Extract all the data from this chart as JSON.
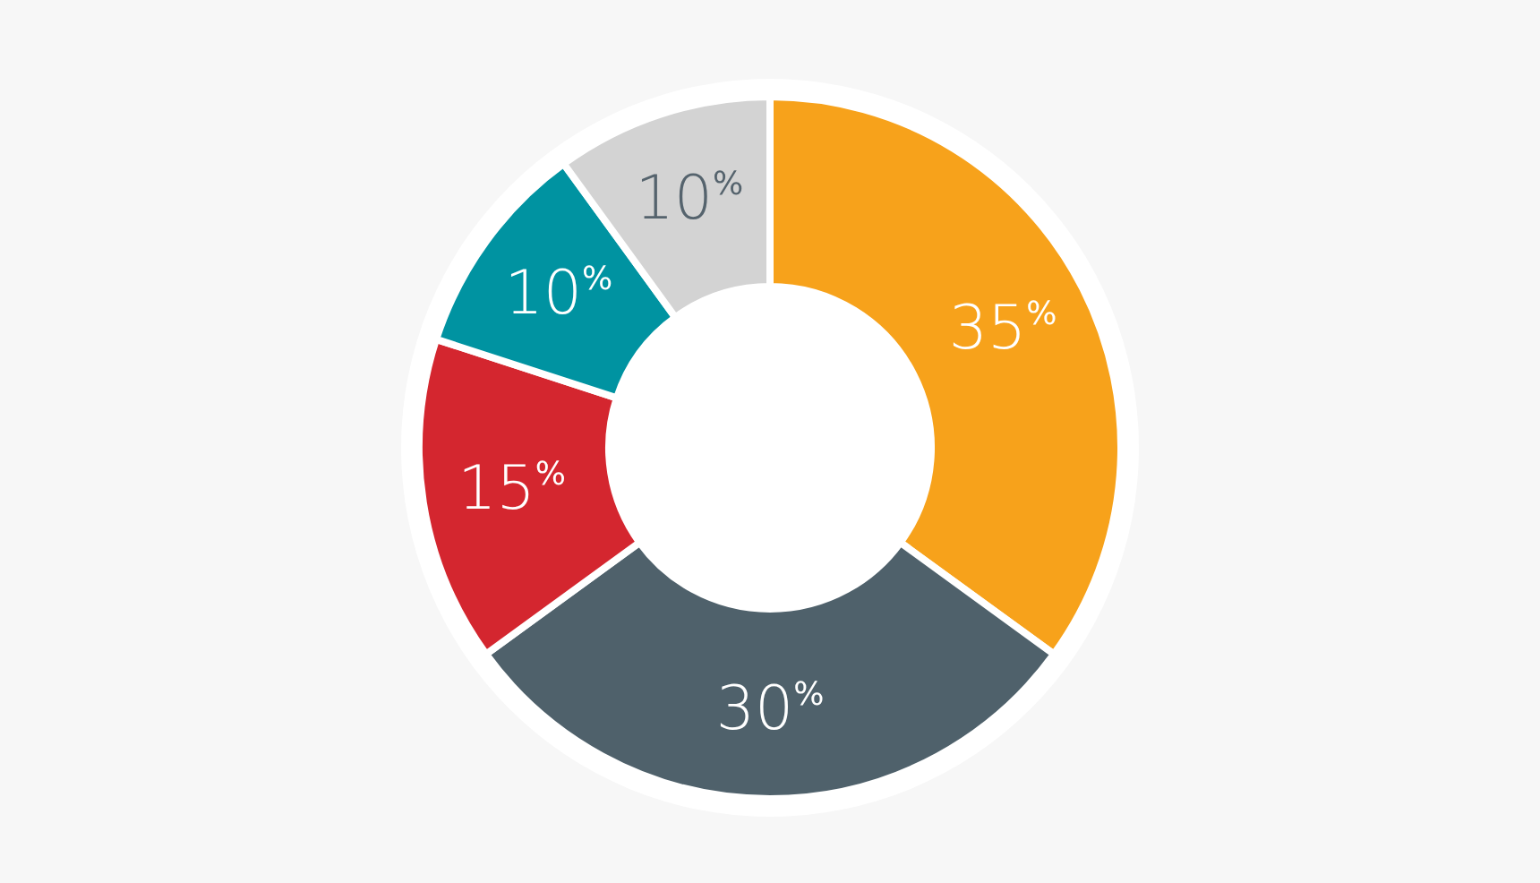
{
  "chart_data": {
    "type": "donut",
    "categories": [
      null,
      null,
      null,
      null,
      null
    ],
    "values": [
      35,
      30,
      15,
      10,
      10
    ],
    "colors": [
      "#f7a21b",
      "#4f616b",
      "#d4262f",
      "#0093a1",
      "#d3d3d3"
    ],
    "value_labels": [
      "35%",
      "30%",
      "15%",
      "10%",
      "10%"
    ]
  }
}
